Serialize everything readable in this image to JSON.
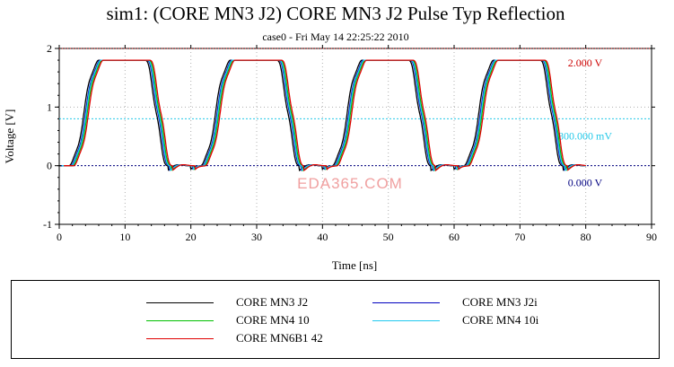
{
  "chart_data": {
    "type": "line",
    "title": "sim1: (CORE MN3 J2) CORE MN3 J2 Pulse Typ Reflection",
    "subtitle": "case0 - Fri May 14 22:25:22 2010",
    "xlabel": "Time [ns]",
    "ylabel": "Voltage [V]",
    "xlim": [
      0,
      90
    ],
    "ylim": [
      -1,
      2
    ],
    "x_ticks": [
      "0",
      "10",
      "20",
      "30",
      "40",
      "50",
      "60",
      "70",
      "80",
      "90"
    ],
    "y_ticks": [
      "-1",
      "0",
      "1",
      "2"
    ],
    "reference_lines": [
      {
        "y": 2.0,
        "label": "2.000 V",
        "color": "#cc0000"
      },
      {
        "y": 0.8,
        "label": "800.000 mV",
        "color": "#22c8e8"
      },
      {
        "y": 0.0,
        "label": "0.000 V",
        "color": "#000080"
      }
    ],
    "watermark": "EDA365.COM",
    "pulse_train": {
      "period_ns": 20,
      "pulses": 4,
      "rise_start_ns": 1.5,
      "rise_end_ns": 6,
      "fall_start_ns": 13,
      "fall_end_ns": 16.5,
      "high_v": 1.8,
      "low_v": 0.0,
      "end_ns": 80
    },
    "series": [
      {
        "name": "CORE MN3 J2",
        "color": "#000000",
        "shift_ns": 0.0
      },
      {
        "name": "CORE MN3 J2i",
        "color": "#0000c0",
        "shift_ns": 0.25
      },
      {
        "name": "CORE MN4 10",
        "color": "#00c000",
        "shift_ns": 0.5
      },
      {
        "name": "CORE MN4 10i",
        "color": "#20c8f0",
        "shift_ns": 0.35
      },
      {
        "name": "CORE MN6B1 42",
        "color": "#e00000",
        "shift_ns": 0.7
      }
    ]
  }
}
